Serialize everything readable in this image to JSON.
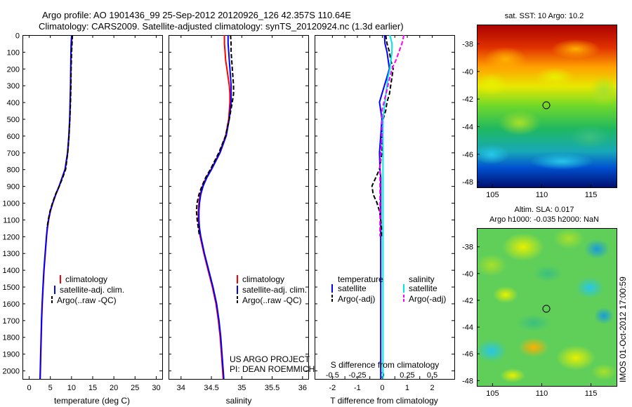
{
  "header": {
    "line1": "Argo profile: AO 1901436_99 25-Sep-2012 20120926_126 42.357S 110.64E",
    "line2": "Climatology: CARS2009. Satellite-adjusted climatology: synTS_20120924.nc (1.3d earlier)"
  },
  "side_text": "IMOS 01-Oct-2012 17:00:59",
  "project_note": {
    "line1": "US ARGO PROJECT",
    "line2": "PI: DEAN ROEMMICH"
  },
  "colors": {
    "climatology": "#ff0000",
    "satellite": "#0000ff",
    "argo": "#000000",
    "sat_sal": "#00e5e5",
    "argo_sal": "#ff00ff"
  },
  "map_panels": [
    {
      "title": "sat. SST: 10 Argo: 10.2",
      "yticks": [
        "-38",
        "-40",
        "-42",
        "-44",
        "-46",
        "-48"
      ],
      "xticks": [
        "105",
        "110",
        "115"
      ],
      "marker": "Argo float position"
    },
    {
      "title_line1": "Altim. SLA: 0.017",
      "title_line2": "Argo h1000: -0.035 h2000: NaN",
      "yticks": [
        "-38",
        "-40",
        "-42",
        "-44",
        "-46",
        "-48"
      ],
      "xticks": [
        "105",
        "110",
        "115"
      ],
      "marker": "Argo float position"
    }
  ],
  "chart_data": [
    {
      "type": "line",
      "xlabel": "temperature (deg C)",
      "xlim": [
        -1.5,
        31.5
      ],
      "xticks": [
        0,
        5,
        10,
        15,
        20,
        25,
        30
      ],
      "ylim": [
        0,
        2050
      ],
      "yticks": [
        0,
        100,
        200,
        300,
        400,
        500,
        600,
        700,
        800,
        900,
        1000,
        1100,
        1200,
        1300,
        1400,
        1500,
        1600,
        1700,
        1800,
        1900,
        2000
      ],
      "depth": [
        0,
        50,
        100,
        200,
        300,
        400,
        500,
        600,
        700,
        800,
        850,
        900,
        950,
        1000,
        1050,
        1100,
        1150,
        1200,
        1300,
        1400,
        1500,
        1600,
        1700,
        1800,
        1900,
        2000,
        2050
      ],
      "legend": [
        "climatology",
        "satellite-adj. clim.",
        "Argo(..raw -QC)"
      ],
      "series": [
        {
          "name": "climatology",
          "style": "solid",
          "color": "#ff0000",
          "values": [
            10.2,
            10.1,
            10.0,
            9.95,
            9.9,
            9.8,
            9.7,
            9.5,
            9.2,
            8.6,
            7.9,
            7.2,
            6.4,
            5.7,
            5.1,
            4.7,
            4.4,
            4.2,
            3.9,
            3.6,
            3.4,
            3.2,
            3.05,
            2.95,
            2.85,
            2.75,
            2.7
          ]
        },
        {
          "name": "satellite-adj. clim.",
          "style": "solid",
          "color": "#0000ff",
          "values": [
            10.1,
            10.0,
            9.95,
            9.9,
            9.85,
            9.75,
            9.65,
            9.45,
            9.15,
            8.55,
            7.85,
            7.15,
            6.35,
            5.65,
            5.05,
            4.65,
            4.35,
            4.15,
            3.85,
            3.55,
            3.35,
            3.15,
            3.0,
            2.9,
            2.8,
            2.7,
            2.65
          ]
        },
        {
          "name": "Argo(..raw -QC)",
          "style": "dash",
          "color": "#000000",
          "values": [
            10.3,
            10.2,
            10.1,
            10.0,
            9.95,
            9.85,
            9.7,
            9.5,
            9.2,
            8.7,
            8.0,
            7.2,
            6.3,
            5.6,
            5.0,
            4.6,
            4.3,
            null,
            null,
            null,
            null,
            null,
            null,
            null,
            null,
            null,
            null
          ]
        }
      ]
    },
    {
      "type": "line",
      "xlabel": "salinity",
      "xlim": [
        33.8,
        36.1
      ],
      "xticks": [
        34,
        34.5,
        35,
        35.5,
        36
      ],
      "ylim": [
        0,
        2050
      ],
      "depth": [
        0,
        50,
        100,
        150,
        200,
        250,
        300,
        350,
        400,
        500,
        600,
        700,
        800,
        850,
        900,
        950,
        1000,
        1050,
        1100,
        1150,
        1200,
        1300,
        1400,
        1500,
        1600,
        1700,
        1800,
        1900,
        2000,
        2050
      ],
      "legend": [
        "climatology",
        "satellite-adj. clim.",
        "Argo(..raw -QC)"
      ],
      "series": [
        {
          "name": "climatology",
          "style": "solid",
          "color": "#ff0000",
          "values": [
            34.72,
            34.72,
            34.73,
            34.74,
            34.76,
            34.78,
            34.8,
            34.81,
            34.81,
            34.79,
            34.74,
            34.64,
            34.5,
            34.42,
            34.36,
            34.32,
            34.3,
            34.29,
            34.29,
            34.3,
            34.32,
            34.38,
            34.45,
            34.52,
            34.58,
            34.62,
            34.65,
            34.67,
            34.69,
            34.7
          ]
        },
        {
          "name": "satellite-adj. clim.",
          "style": "solid",
          "color": "#0000ff",
          "values": [
            34.78,
            34.78,
            34.79,
            34.8,
            34.81,
            34.82,
            34.83,
            34.83,
            34.83,
            34.8,
            34.75,
            34.65,
            34.51,
            34.43,
            34.37,
            34.33,
            34.31,
            34.3,
            34.3,
            34.31,
            34.33,
            34.39,
            34.46,
            34.53,
            34.59,
            34.63,
            34.66,
            34.68,
            34.7,
            34.71
          ]
        },
        {
          "name": "Argo(..raw -QC)",
          "style": "dash",
          "color": "#000000",
          "values": [
            34.82,
            34.83,
            34.83,
            34.84,
            34.85,
            34.86,
            34.87,
            34.87,
            34.85,
            34.8,
            34.74,
            34.63,
            34.49,
            34.41,
            34.35,
            34.3,
            34.27,
            34.26,
            34.27,
            34.29,
            34.31,
            null,
            null,
            null,
            null,
            null,
            null,
            null,
            null,
            null
          ]
        }
      ]
    },
    {
      "type": "line",
      "xlabel": "T difference from climatology",
      "xlim": [
        -2.7,
        2.9
      ],
      "xticks": [
        -2,
        -1.5,
        -1,
        -0.5,
        0,
        0.5,
        1,
        1.5,
        2
      ],
      "xticklabels": [
        "-2",
        "",
        "-1",
        "",
        "0",
        "",
        "1",
        "",
        "2"
      ],
      "top_xlabel": "S difference from climatology",
      "top_xticks": [
        -0.5,
        -0.25,
        0,
        0.25,
        0.5
      ],
      "top_xticklabels": [
        "-0.5",
        "-0.25",
        "0",
        "0.25",
        "0.5"
      ],
      "ylim": [
        0,
        2050
      ],
      "depth": [
        0,
        50,
        100,
        150,
        200,
        250,
        300,
        350,
        400,
        450,
        500,
        600,
        700,
        800,
        850,
        900,
        950,
        1000,
        1050,
        1100,
        1150,
        1200,
        1300,
        1400,
        1600,
        1800,
        2000,
        2050
      ],
      "legend": {
        "temperature": [
          "satellite",
          "Argo(-adj)"
        ],
        "salinity": [
          "satellite",
          "Argo(-adj)"
        ]
      },
      "legend_headers": [
        "temperature",
        "salinity"
      ],
      "series": [
        {
          "name": "T satellite",
          "style": "solid",
          "color": "#0000ff",
          "values": [
            0.1,
            0.12,
            0.2,
            0.25,
            0.3,
            0.2,
            0.1,
            0.0,
            -0.1,
            -0.05,
            0.0,
            -0.05,
            -0.1,
            -0.08,
            -0.05,
            -0.05,
            -0.05,
            -0.05,
            -0.05,
            -0.05,
            -0.05,
            -0.05,
            -0.05,
            -0.05,
            -0.05,
            -0.05,
            -0.05,
            -0.05
          ]
        },
        {
          "name": "T Argo(-adj)",
          "style": "dash",
          "color": "#000000",
          "values": [
            0.15,
            0.2,
            0.3,
            0.35,
            0.45,
            0.4,
            0.35,
            0.3,
            0.2,
            0.15,
            0.05,
            0.0,
            0.0,
            -0.1,
            -0.25,
            -0.4,
            -0.35,
            -0.2,
            -0.1,
            -0.05,
            -0.02,
            -0.02,
            null,
            null,
            null,
            null,
            null,
            null
          ]
        },
        {
          "name": "S satellite",
          "style": "solid",
          "color": "#00e5e5",
          "values": [
            0.08,
            0.1,
            0.1,
            0.09,
            0.08,
            0.06,
            0.05,
            0.04,
            0.03,
            0.02,
            0.01,
            0.01,
            0.01,
            0.01,
            0.01,
            0.01,
            0.01,
            0.01,
            0.01,
            0.01,
            0.01,
            0.01,
            0.01,
            0.01,
            0.01,
            0.01,
            0.01,
            0.01
          ]
        },
        {
          "name": "S Argo(-adj)",
          "style": "dash",
          "color": "#ff00ff",
          "values": [
            0.22,
            0.2,
            0.17,
            0.14,
            0.1,
            0.08,
            0.06,
            0.04,
            0.02,
            0.0,
            0.0,
            0.0,
            -0.01,
            -0.02,
            -0.02,
            -0.02,
            -0.02,
            -0.02,
            -0.02,
            -0.02,
            -0.02,
            -0.02,
            null,
            null,
            null,
            null,
            null,
            null
          ]
        }
      ]
    }
  ]
}
